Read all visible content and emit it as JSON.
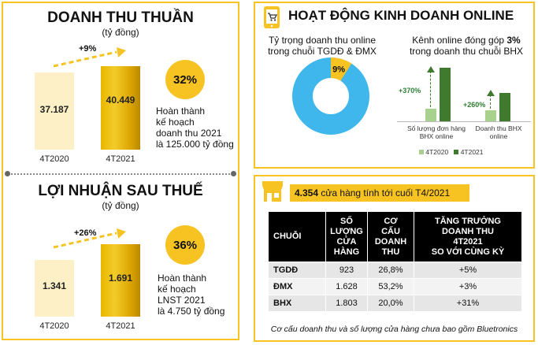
{
  "revenue": {
    "title": "DOANH THU THUẦN",
    "unit": "(tỷ đồng)",
    "growth": "+9%",
    "bars": [
      {
        "label": "4T2020",
        "value": "37.187",
        "amount": 37187
      },
      {
        "label": "4T2021",
        "value": "40.449",
        "amount": 40449
      }
    ],
    "completion_pct": "32%",
    "completion_note": [
      "Hoàn thành",
      "kế hoạch",
      "doanh thu 2021",
      "là 125.000 tỷ đồng"
    ]
  },
  "profit": {
    "title": "LỢI NHUẬN SAU THUẾ",
    "unit": "(tỷ đồng)",
    "growth": "+26%",
    "bars": [
      {
        "label": "4T2020",
        "value": "1.341",
        "amount": 1341
      },
      {
        "label": "4T2021",
        "value": "1.691",
        "amount": 1691
      }
    ],
    "completion_pct": "36%",
    "completion_note": [
      "Hoàn thành",
      "kế hoạch",
      "LNST 2021",
      "là 4.750 tỷ đồng"
    ]
  },
  "online": {
    "title": "HOẠT ĐỘNG KINH DOANH ONLINE",
    "pie_caption": [
      "Tỷ trọng doanh thu online",
      "trong chuỗi TGDĐ & ĐMX"
    ],
    "pie_share": 0.09,
    "pie_label": "9%",
    "bhx_caption_prefix": "Kênh online đóng góp ",
    "bhx_caption_bold": "3%",
    "bhx_caption_line2": "trong doanh thu chuỗi BHX",
    "groups": [
      {
        "label": [
          "Số lượng đơn hàng",
          "BHX online"
        ],
        "growth": "+370%",
        "v2020": 100,
        "v2021": 470
      },
      {
        "label": [
          "Doanh thu BHX",
          "online"
        ],
        "growth": "+260%",
        "v2020": 100,
        "v2021": 360
      }
    ],
    "legend": [
      "4T2020",
      "4T2021"
    ],
    "colors": {
      "y2020": "#a9d18e",
      "y2021": "#3f7a2f",
      "pie_main": "#3fb6ec",
      "pie_slice": "#f6c323"
    }
  },
  "stores": {
    "banner_bold": "4.354",
    "banner_rest": " cửa hàng tính tới cuối T4/2021",
    "headers": [
      "CHUỖI",
      "SỐ LƯỢNG CỬA HÀNG",
      "CƠ CẤU DOANH THU",
      "TĂNG TRƯỞNG DOANH THU 4T2021 SO VỚI CÙNG KỲ"
    ],
    "rows": [
      [
        "TGDĐ",
        "923",
        "26,8%",
        "+5%"
      ],
      [
        "ĐMX",
        "1.628",
        "53,2%",
        "+3%"
      ],
      [
        "BHX",
        "1.803",
        "20,0%",
        "+31%"
      ]
    ],
    "footnote": "Cơ cấu doanh thu và số lượng cửa hàng chưa bao gồm Bluetronics"
  },
  "colors": {
    "accent": "#f6c323",
    "bar_light": "#fdf0c6"
  }
}
